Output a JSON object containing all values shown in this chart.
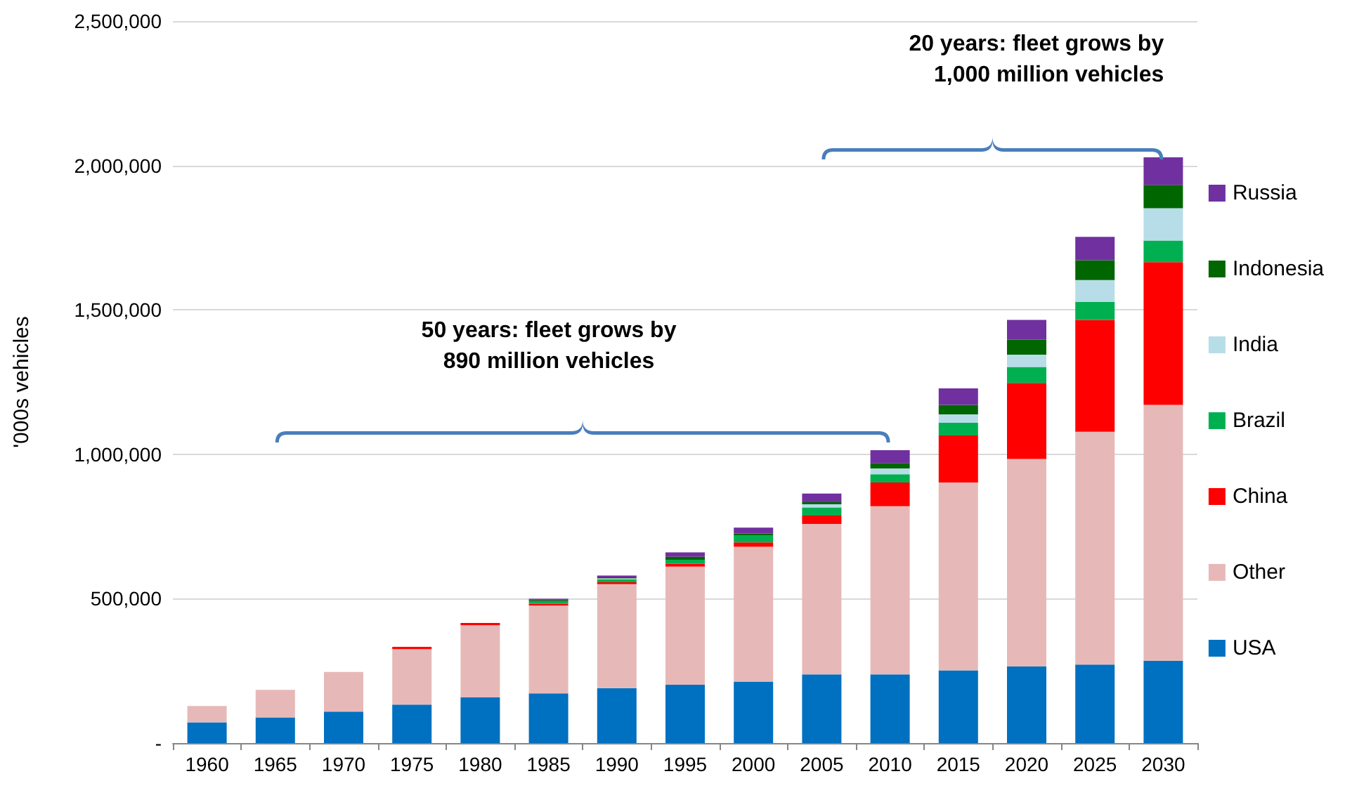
{
  "chart_data": {
    "type": "bar",
    "stacked": true,
    "ylabel": "'000s vehicles",
    "categories": [
      "1960",
      "1965",
      "1970",
      "1975",
      "1980",
      "1985",
      "1990",
      "1995",
      "2000",
      "2005",
      "2010",
      "2015",
      "2020",
      "2025",
      "2030"
    ],
    "series": [
      {
        "name": "USA",
        "color": "#0070c0",
        "values": [
          72000,
          89000,
          109000,
          133000,
          158000,
          172000,
          190000,
          202000,
          213000,
          238000,
          238000,
          252000,
          265000,
          272000,
          285000
        ]
      },
      {
        "name": "Other",
        "color": "#e6b9b8",
        "values": [
          56000,
          95000,
          137000,
          192000,
          250000,
          304000,
          360000,
          409000,
          467000,
          521000,
          582000,
          650000,
          719000,
          806000,
          886000
        ]
      },
      {
        "name": "China",
        "color": "#ff0000",
        "values": [
          null,
          null,
          null,
          8000,
          8000,
          6000,
          7000,
          10000,
          15000,
          29000,
          82000,
          163000,
          263000,
          387000,
          494000
        ]
      },
      {
        "name": "Brazil",
        "color": "#00b050",
        "values": [
          null,
          null,
          null,
          null,
          null,
          8000,
          10000,
          14000,
          25000,
          28000,
          29000,
          44000,
          55000,
          62000,
          75000
        ]
      },
      {
        "name": "India",
        "color": "#b7dde8",
        "values": [
          null,
          null,
          null,
          null,
          null,
          null,
          3000,
          null,
          null,
          11000,
          20000,
          29000,
          43000,
          76000,
          112000
        ]
      },
      {
        "name": "Indonesia",
        "color": "#006600",
        "values": [
          null,
          null,
          null,
          null,
          null,
          5000,
          4000,
          10000,
          6000,
          7000,
          19000,
          33000,
          52000,
          69000,
          81000
        ]
      },
      {
        "name": "Russia",
        "color": "#7030a0",
        "values": [
          null,
          null,
          null,
          null,
          null,
          5000,
          6000,
          15000,
          20000,
          30000,
          44000,
          57000,
          68000,
          81000,
          95000
        ]
      }
    ],
    "ylim": [
      0,
      2500000
    ],
    "yticks": [
      {
        "value": 0,
        "label": "-"
      },
      {
        "value": 500000,
        "label": "500,000"
      },
      {
        "value": 1000000,
        "label": "1,000,000"
      },
      {
        "value": 1500000,
        "label": "1,500,000"
      },
      {
        "value": 2000000,
        "label": "2,000,000"
      },
      {
        "value": 2500000,
        "label": "2,500,000"
      }
    ],
    "grid": "y",
    "legend": "right",
    "annotations": [
      "50 years: fleet grows by\n890 million vehicles",
      "20 years: fleet grows by\n1,000 million vehicles"
    ]
  }
}
